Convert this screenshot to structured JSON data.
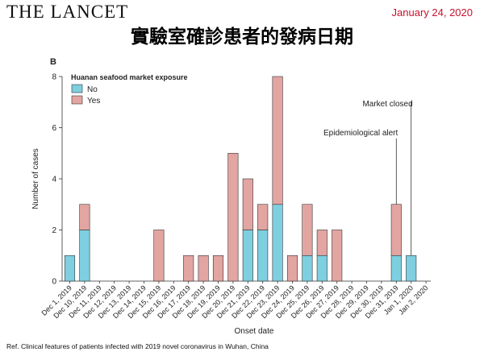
{
  "header": {
    "masthead": "THE LANCET",
    "date": "January 24, 2020",
    "title": "實驗室確診患者的發病日期"
  },
  "footer": {
    "reference": "Ref. Clinical features of patients infected with 2019 novel coronavirus in Wuhan, China"
  },
  "colors": {
    "no": "#7ecfe0",
    "yes": "#e3a5a1",
    "date": "#c8102e"
  },
  "chart_data": {
    "type": "bar",
    "stacked": true,
    "panel_label": "B",
    "legend_title": "Huanan seafood market exposure",
    "legend_placement": "top-left",
    "xlabel": "Onset date",
    "ylabel": "Number of cases",
    "ylim": [
      0,
      8
    ],
    "yticks": [
      0,
      2,
      4,
      6,
      8
    ],
    "grid": false,
    "categories": [
      "Dec 1, 2019",
      "Dec 10, 2019",
      "Dec 11, 2019",
      "Dec 12, 2019",
      "Dec 13, 2019",
      "Dec 14, 2019",
      "Dec 15, 2019",
      "Dec 16, 2019",
      "Dec 17, 2019",
      "Dec 18, 2019",
      "Dec 19, 2019",
      "Dec 20, 2019",
      "Dec 21, 2019",
      "Dec 22, 2019",
      "Dec 23, 2019",
      "Dec 24, 2019",
      "Dec 25, 2019",
      "Dec 26, 2019",
      "Dec 27, 2019",
      "Dec 28, 2019",
      "Dec 29, 2019",
      "Dec 30, 2019",
      "Dec 31, 2019",
      "Jan 1, 2020",
      "Jan 2, 2020"
    ],
    "series": [
      {
        "name": "No",
        "color": "#7ecfe0",
        "values": [
          1,
          2,
          0,
          0,
          0,
          0,
          0,
          0,
          0,
          0,
          0,
          0,
          2,
          2,
          3,
          0,
          1,
          1,
          0,
          0,
          0,
          0,
          1,
          1,
          0
        ]
      },
      {
        "name": "Yes",
        "color": "#e3a5a1",
        "values": [
          0,
          1,
          0,
          0,
          0,
          0,
          2,
          0,
          1,
          1,
          1,
          5,
          2,
          1,
          5,
          1,
          2,
          1,
          2,
          0,
          0,
          0,
          2,
          0,
          0
        ]
      }
    ],
    "annotations": [
      {
        "text": "Epidemiological alert",
        "category": "Dec 31, 2019"
      },
      {
        "text": "Market closed",
        "category": "Jan 1, 2020"
      }
    ]
  }
}
